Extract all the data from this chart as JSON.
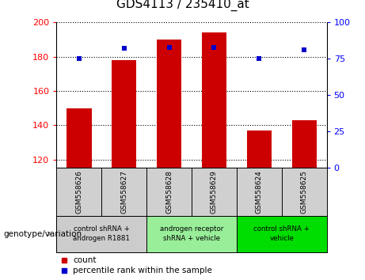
{
  "title": "GDS4113 / 235410_at",
  "samples": [
    "GSM558626",
    "GSM558627",
    "GSM558628",
    "GSM558629",
    "GSM558624",
    "GSM558625"
  ],
  "counts": [
    150,
    178,
    190,
    194,
    137,
    143
  ],
  "percentile_ranks": [
    75,
    82,
    83,
    83,
    75,
    81
  ],
  "ylim_left": [
    115,
    200
  ],
  "ylim_right": [
    0,
    100
  ],
  "yticks_left": [
    120,
    140,
    160,
    180,
    200
  ],
  "yticks_right": [
    0,
    25,
    50,
    75,
    100
  ],
  "bar_color": "#cc0000",
  "dot_color": "#0000cc",
  "groups": [
    {
      "label": "control shRNA +\nandrogen R1881",
      "start": 0,
      "end": 2,
      "color": "#cccccc"
    },
    {
      "label": "androgen receptor\nshRNA + vehicle",
      "start": 2,
      "end": 4,
      "color": "#99ee99"
    },
    {
      "label": "control shRNA +\nvehicle",
      "start": 4,
      "end": 6,
      "color": "#00dd00"
    }
  ],
  "xlabel_area_label": "genotype/variation",
  "legend_count_label": "count",
  "legend_percentile_label": "percentile rank within the sample"
}
